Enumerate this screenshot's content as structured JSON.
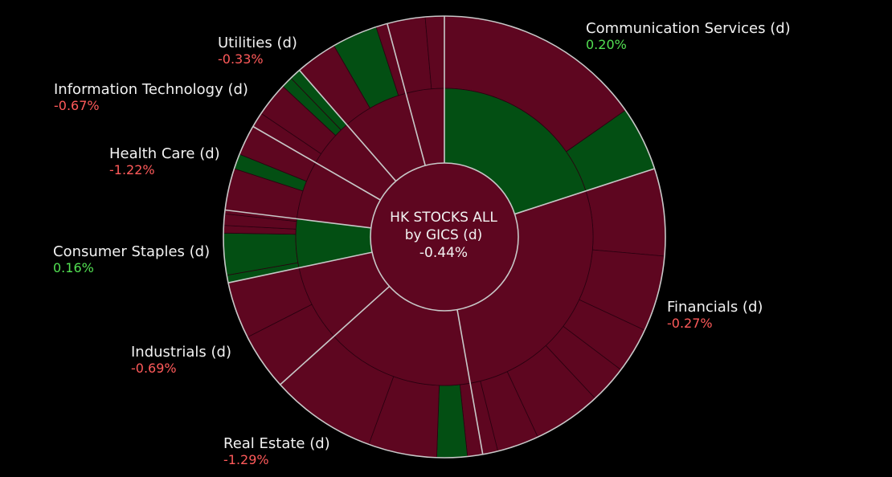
{
  "chart_data": {
    "type": "sunburst",
    "center": {
      "title_line1": "HK STOCKS ALL",
      "title_line2": "by GICS (d)",
      "change": "-0.44%"
    },
    "sectors": [
      {
        "name": "Communication Services (d)",
        "change": "0.20%",
        "sign": "pos",
        "start": 0,
        "end": 72
      },
      {
        "name": "Financials (d)",
        "change": "-0.27%",
        "sign": "neg",
        "start": 72,
        "end": 170
      },
      {
        "name": "Real Estate (d)",
        "change": "-1.29%",
        "sign": "neg",
        "start": 170,
        "end": 228
      },
      {
        "name": "Industrials (d)",
        "change": "-0.69%",
        "sign": "neg",
        "start": 228,
        "end": 258
      },
      {
        "name": "Consumer Staples (d)",
        "change": "0.16%",
        "sign": "pos",
        "start": 258,
        "end": 277
      },
      {
        "name": "Health Care (d)",
        "change": "-1.22%",
        "sign": "neg",
        "start": 277,
        "end": 300
      },
      {
        "name": "Information Technology (d)",
        "change": "-0.67%",
        "sign": "neg",
        "start": 300,
        "end": 319
      },
      {
        "name": "Utilities (d)",
        "change": "-0.33%",
        "sign": "neg",
        "start": 319,
        "end": 345
      },
      {
        "name": "",
        "change": "",
        "sign": "neg",
        "start": 345,
        "end": 360
      }
    ],
    "industries": [
      {
        "start": 0,
        "end": 55,
        "sign": "neg"
      },
      {
        "start": 55,
        "end": 72,
        "sign": "pos"
      },
      {
        "start": 72,
        "end": 95,
        "sign": "neg"
      },
      {
        "start": 95,
        "end": 115,
        "sign": "neg"
      },
      {
        "start": 115,
        "end": 127,
        "sign": "neg"
      },
      {
        "start": 127,
        "end": 137,
        "sign": "neg"
      },
      {
        "start": 137,
        "end": 155,
        "sign": "neg"
      },
      {
        "start": 155,
        "end": 166,
        "sign": "neg"
      },
      {
        "start": 166,
        "end": 170,
        "sign": "neg"
      },
      {
        "start": 170,
        "end": 174,
        "sign": "neg"
      },
      {
        "start": 174,
        "end": 182,
        "sign": "pos"
      },
      {
        "start": 182,
        "end": 200,
        "sign": "neg"
      },
      {
        "start": 200,
        "end": 228,
        "sign": "neg"
      },
      {
        "start": 228,
        "end": 243,
        "sign": "neg"
      },
      {
        "start": 243,
        "end": 258,
        "sign": "neg"
      },
      {
        "start": 258,
        "end": 260,
        "sign": "pos"
      },
      {
        "start": 260,
        "end": 271,
        "sign": "pos"
      },
      {
        "start": 271,
        "end": 273,
        "sign": "neg"
      },
      {
        "start": 273,
        "end": 276,
        "sign": "neg"
      },
      {
        "start": 276,
        "end": 277,
        "sign": "neg"
      },
      {
        "start": 277,
        "end": 288,
        "sign": "neg"
      },
      {
        "start": 288,
        "end": 292,
        "sign": "pos"
      },
      {
        "start": 292,
        "end": 300,
        "sign": "neg"
      },
      {
        "start": 300,
        "end": 304,
        "sign": "neg"
      },
      {
        "start": 304,
        "end": 313,
        "sign": "neg"
      },
      {
        "start": 313,
        "end": 316,
        "sign": "pos"
      },
      {
        "start": 316,
        "end": 319,
        "sign": "pos"
      },
      {
        "start": 319,
        "end": 330,
        "sign": "neg"
      },
      {
        "start": 330,
        "end": 342,
        "sign": "pos"
      },
      {
        "start": 342,
        "end": 345,
        "sign": "neg"
      },
      {
        "start": 345,
        "end": 355,
        "sign": "neg"
      },
      {
        "start": 355,
        "end": 360,
        "sign": "neg"
      }
    ],
    "colors": {
      "positive": "#034f13",
      "negative": "#5e0620",
      "separator": "#c8c8c8",
      "background": "#000000"
    }
  }
}
